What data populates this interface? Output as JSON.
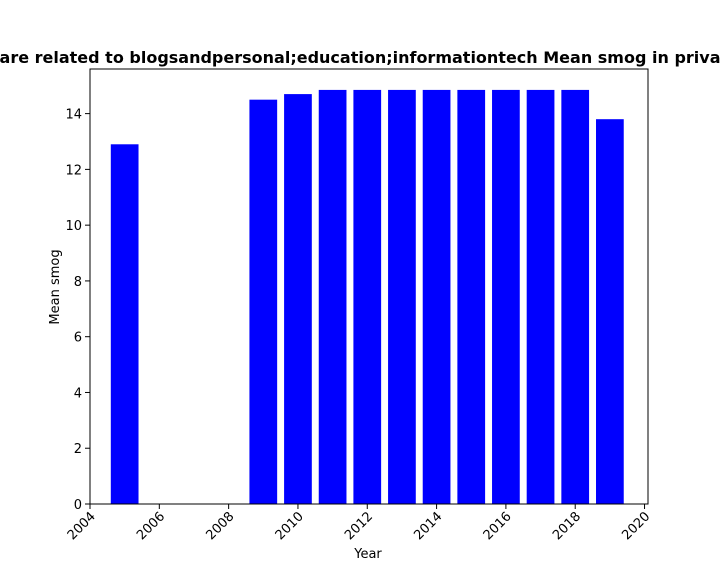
{
  "chart_data": {
    "type": "bar",
    "title": "are related to blogsandpersonal;education;informationtech Mean smog in priva",
    "xlabel": "Year",
    "ylabel": "Mean smog",
    "x": [
      2005,
      2009,
      2010,
      2011,
      2012,
      2013,
      2014,
      2015,
      2016,
      2017,
      2018,
      2019
    ],
    "values": [
      12.9,
      14.5,
      14.7,
      14.85,
      14.85,
      14.85,
      14.85,
      14.85,
      14.85,
      14.85,
      14.85,
      13.8
    ],
    "xlim": [
      2004.0,
      2020.1
    ],
    "ylim": [
      0,
      15.6
    ],
    "xticks": [
      "2004",
      "2006",
      "2008",
      "2010",
      "2012",
      "2014",
      "2016",
      "2018",
      "2020"
    ],
    "yticks": [
      "0",
      "2",
      "4",
      "6",
      "8",
      "10",
      "12",
      "14"
    ],
    "bar_color": "#0000ff",
    "grid": false,
    "legend": false
  }
}
